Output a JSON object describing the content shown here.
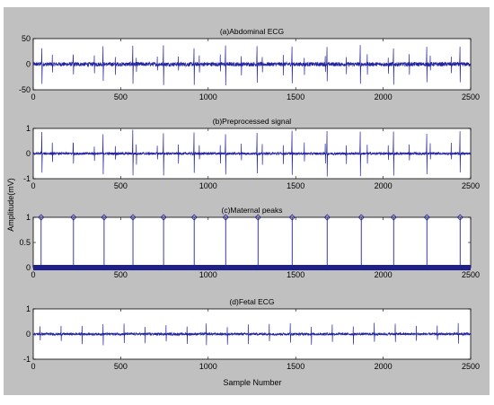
{
  "figure": {
    "ylabel": "Amplitude(mV)",
    "xlabel": "Sample Number",
    "background": "#c0c0c0",
    "axes_background": "#ffffff",
    "line_color": "#2424a0"
  },
  "chart_data": [
    {
      "type": "line",
      "title": "(a)Abdominal ECG",
      "xlim": [
        0,
        2500
      ],
      "ylim": [
        -50,
        50
      ],
      "xticks": [
        "0",
        "500",
        "1000",
        "1500",
        "2000",
        "2500"
      ],
      "yticks": [
        "50",
        "0",
        "-50"
      ],
      "ytick_values": [
        50,
        0,
        -50
      ],
      "maternal_beats_at": [
        50,
        230,
        400,
        570,
        745,
        920,
        1100,
        1280,
        1480,
        1680,
        1870,
        2060,
        2250,
        2440
      ],
      "maternal_amplitude_range": [
        -42,
        38
      ],
      "fetal_amplitude_range": [
        -22,
        20
      ],
      "baseline_noise_range": [
        -8,
        8
      ]
    },
    {
      "type": "line",
      "title": "(b)Preprocessed signal",
      "xlim": [
        0,
        2500
      ],
      "ylim": [
        -1,
        1
      ],
      "xticks": [
        "0",
        "500",
        "1000",
        "1500",
        "2000",
        "2500"
      ],
      "yticks": [
        "1",
        "0",
        "-1"
      ],
      "ytick_values": [
        1,
        0,
        -1
      ],
      "maternal_beats_at": [
        50,
        230,
        400,
        570,
        745,
        920,
        1100,
        1280,
        1480,
        1680,
        1870,
        2060,
        2250,
        2440
      ],
      "maternal_amplitude_range": [
        -0.95,
        0.95
      ],
      "fetal_amplitude_range": [
        -0.45,
        0.45
      ],
      "baseline_noise_range": [
        -0.1,
        0.1
      ]
    },
    {
      "type": "stem",
      "title": "(c)Maternal peaks",
      "xlim": [
        0,
        2500
      ],
      "ylim": [
        0,
        1
      ],
      "xticks": [
        "0",
        "500",
        "1000",
        "1500",
        "2000",
        "2500"
      ],
      "yticks": [
        "1",
        "0.5",
        "0"
      ],
      "ytick_values": [
        1,
        0.5,
        0
      ],
      "peak_samples": [
        45,
        230,
        405,
        570,
        745,
        920,
        1100,
        1285,
        1480,
        1680,
        1875,
        2060,
        2250,
        2440
      ],
      "peak_value": 1
    },
    {
      "type": "line",
      "title": "(d)Fetal ECG",
      "xlim": [
        0,
        2500
      ],
      "ylim": [
        -1,
        1
      ],
      "xticks": [
        "0",
        "500",
        "1000",
        "1500",
        "2000",
        "2500"
      ],
      "yticks": [
        "1",
        "0",
        "-1"
      ],
      "ytick_values": [
        1,
        0,
        -1
      ],
      "fetal_beats_at": [
        40,
        160,
        280,
        400,
        520,
        640,
        760,
        880,
        990,
        1110,
        1230,
        1350,
        1470,
        1590,
        1710,
        1830,
        1950,
        2070,
        2190,
        2310,
        2430
      ],
      "fetal_amplitude_range": [
        -0.45,
        0.45
      ],
      "baseline_noise_range": [
        -0.1,
        0.1
      ]
    }
  ]
}
